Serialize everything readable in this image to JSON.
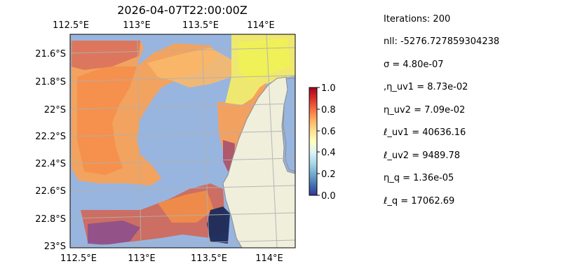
{
  "map": {
    "title": "2026-04-07T22:00:00Z",
    "top_axis_labels": [
      "112.5°E",
      "113°E",
      "113.5°E",
      "114°E"
    ],
    "bottom_axis_labels": [
      "112.5°E",
      "113°E",
      "113.5°E",
      "114°E"
    ],
    "left_axis_labels": [
      "21.6°S",
      "21.8°S",
      "22°S",
      "22.2°S",
      "22.4°S",
      "22.6°S",
      "22.8°S",
      "23°S"
    ],
    "extent": {
      "lon_min": 112.5,
      "lon_max": 114.2,
      "lat_min": -23.0,
      "lat_max": -21.4
    },
    "colors": {
      "ocean": "#98b5e0",
      "land": "#efefdc",
      "coastline": "#8c8c8c",
      "gridline": "#b0b0b0"
    }
  },
  "colorbar": {
    "colormap": "RdYlBu_r",
    "ticks": [
      "0.0",
      "0.2",
      "0.4",
      "0.6",
      "0.8",
      "1.0"
    ],
    "range": [
      0.0,
      1.0
    ]
  },
  "stats": [
    "Iterations: 200",
    "nll: -5276.727859304238",
    "σ = 4.80e-07",
    ",η_uv1 = 8.73e-02",
    "η_uv2 = 7.09e-02",
    "ℓ_uv1 = 40636.16",
    "ℓ_uv2 = 9489.78",
    "η_q = 1.36e-05",
    "ℓ_q = 17062.69"
  ]
}
